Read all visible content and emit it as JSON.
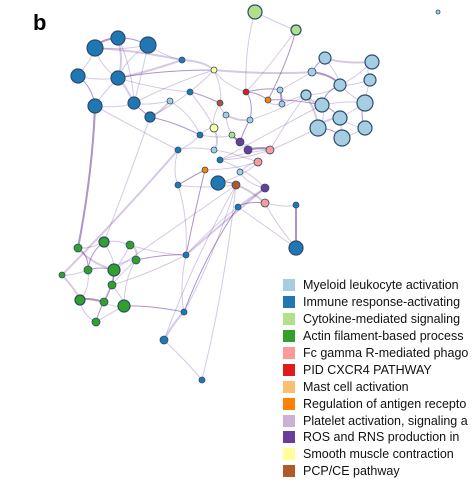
{
  "panel_label": "b",
  "legend": [
    {
      "label": "Myeloid leukocyte activation",
      "color": "#a6cee3"
    },
    {
      "label": "Immune response-activating",
      "color": "#1f78b4"
    },
    {
      "label": "Cytokine-mediated signaling",
      "color": "#b2df8a"
    },
    {
      "label": "Actin filament-based process",
      "color": "#33a02c"
    },
    {
      "label": "Fc gamma R-mediated phago",
      "color": "#fb9a99"
    },
    {
      "label": "PID CXCR4 PATHWAY",
      "color": "#e31a1c"
    },
    {
      "label": "Mast cell activation",
      "color": "#fdbf6f"
    },
    {
      "label": "Regulation of antigen recepto",
      "color": "#ff7f00"
    },
    {
      "label": "Platelet activation, signaling a",
      "color": "#cab2d6"
    },
    {
      "label": "ROS and RNS production in",
      "color": "#6a3d9a"
    },
    {
      "label": "Smooth muscle contraction",
      "color": "#ffff99"
    },
    {
      "label": "PCP/CE pathway",
      "color": "#b15928"
    }
  ],
  "colors": {
    "edge": "#6a3d9a",
    "node_stroke": "#2b4d6b"
  }
}
